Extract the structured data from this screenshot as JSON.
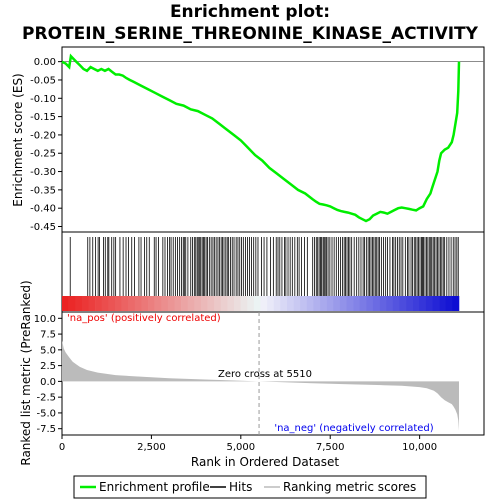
{
  "chart_data": {
    "type": "line",
    "title_line1": "Enrichment plot:",
    "title_line2": "PROTEIN_SERINE_THREONINE_KINASE_ACTIVITY",
    "top_panel": {
      "ylabel": "Enrichment score (ES)",
      "ylim": [
        -0.465,
        0.04
      ],
      "yticks": [
        0.0,
        -0.05,
        -0.1,
        -0.15,
        -0.2,
        -0.25,
        -0.3,
        -0.35,
        -0.4,
        -0.45
      ],
      "ytick_labels": [
        "0.00",
        "-0.05",
        "-0.10",
        "-0.15",
        "-0.20",
        "-0.25",
        "-0.30",
        "-0.35",
        "-0.40",
        "-0.45"
      ],
      "series": [
        {
          "name": "Enrichment profile",
          "color": "#00ee00",
          "x": [
            0,
            100,
            200,
            250,
            400,
            500,
            600,
            700,
            800,
            900,
            1000,
            1100,
            1200,
            1300,
            1400,
            1500,
            1600,
            1700,
            1800,
            1900,
            2000,
            2200,
            2400,
            2600,
            2800,
            3000,
            3200,
            3400,
            3600,
            3800,
            4000,
            4200,
            4400,
            4600,
            4800,
            5000,
            5200,
            5400,
            5600,
            5800,
            6000,
            6200,
            6400,
            6600,
            6800,
            7000,
            7100,
            7200,
            7300,
            7400,
            7500,
            7600,
            7700,
            7800,
            7900,
            8000,
            8100,
            8200,
            8300,
            8400,
            8500,
            8600,
            8700,
            8800,
            8900,
            9000,
            9100,
            9200,
            9300,
            9400,
            9500,
            9600,
            9700,
            9800,
            9900,
            10000,
            10100,
            10150,
            10200,
            10300,
            10350,
            10400,
            10500,
            10550,
            10600,
            10700,
            10800,
            10900,
            10950,
            11000,
            11050,
            11080,
            11100
          ],
          "y": [
            0.0,
            -0.005,
            -0.015,
            0.015,
            0.0,
            -0.01,
            -0.02,
            -0.025,
            -0.015,
            -0.02,
            -0.025,
            -0.02,
            -0.025,
            -0.02,
            -0.028,
            -0.035,
            -0.035,
            -0.038,
            -0.045,
            -0.05,
            -0.055,
            -0.065,
            -0.075,
            -0.085,
            -0.095,
            -0.105,
            -0.115,
            -0.12,
            -0.13,
            -0.135,
            -0.145,
            -0.155,
            -0.17,
            -0.185,
            -0.2,
            -0.215,
            -0.235,
            -0.255,
            -0.27,
            -0.29,
            -0.305,
            -0.32,
            -0.335,
            -0.35,
            -0.36,
            -0.375,
            -0.382,
            -0.388,
            -0.39,
            -0.392,
            -0.395,
            -0.4,
            -0.405,
            -0.408,
            -0.41,
            -0.412,
            -0.415,
            -0.418,
            -0.425,
            -0.43,
            -0.435,
            -0.43,
            -0.42,
            -0.415,
            -0.41,
            -0.412,
            -0.415,
            -0.41,
            -0.405,
            -0.4,
            -0.398,
            -0.4,
            -0.402,
            -0.404,
            -0.406,
            -0.4,
            -0.395,
            -0.385,
            -0.375,
            -0.36,
            -0.345,
            -0.33,
            -0.3,
            -0.27,
            -0.25,
            -0.24,
            -0.235,
            -0.22,
            -0.2,
            -0.17,
            -0.14,
            -0.08,
            0.0
          ]
        }
      ]
    },
    "hits_panel": {
      "hits": [
        230,
        720,
        780,
        860,
        940,
        1010,
        1050,
        1160,
        1210,
        1280,
        1310,
        1390,
        1450,
        1500,
        1620,
        1710,
        1790,
        1860,
        1950,
        2030,
        2150,
        2210,
        2310,
        2370,
        2440,
        2580,
        2630,
        2700,
        2820,
        2880,
        2950,
        3010,
        3050,
        3110,
        3170,
        3230,
        3290,
        3340,
        3390,
        3420,
        3460,
        3520,
        3600,
        3650,
        3700,
        3740,
        3780,
        3810,
        3850,
        3880,
        3920,
        3960,
        3990,
        4030,
        4070,
        4120,
        4170,
        4220,
        4260,
        4310,
        4360,
        4400,
        4450,
        4490,
        4530,
        4580,
        4620,
        4660,
        4710,
        4760,
        4810,
        4870,
        4920,
        4970,
        5020,
        5070,
        5130,
        5190,
        5240,
        5300,
        5360,
        5420,
        5480,
        5580,
        5650,
        5730,
        5830,
        5910,
        5990,
        6040,
        6090,
        6150,
        6220,
        6260,
        6320,
        6380,
        6440,
        6510,
        6580,
        6630,
        6700,
        6780,
        6860,
        7010,
        7060,
        7110,
        7150,
        7190,
        7230,
        7260,
        7300,
        7330,
        7360,
        7400,
        7440,
        7490,
        7550,
        7610,
        7670,
        7730,
        7790,
        7840,
        7890,
        7930,
        7970,
        8010,
        8050,
        8100,
        8170,
        8240,
        8300,
        8360,
        8420,
        8460,
        8510,
        8560,
        8600,
        8640,
        8680,
        8720,
        8760,
        8800,
        8840,
        8880,
        8930,
        8990,
        9050,
        9100,
        9170,
        9240,
        9280,
        9330,
        9380,
        9430,
        9480,
        9530,
        9600,
        9660,
        9700,
        9760,
        9800,
        9850,
        9890,
        9930,
        9970,
        10010,
        10050,
        10080,
        10110,
        10150,
        10190,
        10230,
        10270,
        10310,
        10340,
        10380,
        10420,
        10460,
        10500,
        10540,
        10580,
        10620,
        10660,
        10700,
        10760,
        10820,
        10880,
        10940,
        10990,
        11040,
        11080
      ]
    },
    "bottom_panel": {
      "ylabel": "Ranked list metric (PreRanked)",
      "xlabel": "Rank in Ordered Dataset",
      "xlim": [
        0,
        11800
      ],
      "ylim": [
        -8.5,
        11.0
      ],
      "yticks": [
        10.0,
        7.5,
        5.0,
        2.5,
        0.0,
        -2.5,
        -5.0,
        -7.5
      ],
      "ytick_labels": [
        "10.0",
        "7.5",
        "5.0",
        "2.5",
        "0.0",
        "-2.5",
        "-5.0",
        "-7.5"
      ],
      "xticks": [
        0,
        2500,
        5000,
        7500,
        10000
      ],
      "xtick_labels": [
        "0",
        "2,500",
        "5,000",
        "7,500",
        "10,000"
      ],
      "zero_cross_label": "Zero cross at 5510",
      "zero_cross_x": 5510,
      "pos_label": "'na_pos' (positively correlated)",
      "neg_label": "'na_neg' (negatively correlated)",
      "metric_curve": {
        "x": [
          0,
          50,
          100,
          200,
          300,
          400,
          500,
          700,
          1000,
          1500,
          2000,
          3000,
          4000,
          5000,
          5510,
          6000,
          7000,
          8000,
          9000,
          9500,
          10000,
          10200,
          10400,
          10500,
          10600,
          10700,
          10800,
          10900,
          10950,
          11000,
          11050,
          11080,
          11100
        ],
        "y": [
          6.5,
          5.2,
          4.6,
          3.8,
          3.1,
          2.7,
          2.3,
          1.8,
          1.4,
          1.0,
          0.8,
          0.5,
          0.3,
          0.1,
          0.0,
          -0.1,
          -0.3,
          -0.45,
          -0.6,
          -0.7,
          -0.9,
          -1.1,
          -1.5,
          -1.9,
          -2.5,
          -3.0,
          -3.3,
          -3.6,
          -4.0,
          -4.5,
          -5.2,
          -6.2,
          -7.8
        ]
      }
    },
    "legend": {
      "items": [
        {
          "label": "Enrichment profile",
          "color": "#00ee00"
        },
        {
          "label": "Hits",
          "color": "#000000"
        },
        {
          "label": "Ranking metric scores",
          "color": "#bbbbbb"
        }
      ]
    }
  }
}
